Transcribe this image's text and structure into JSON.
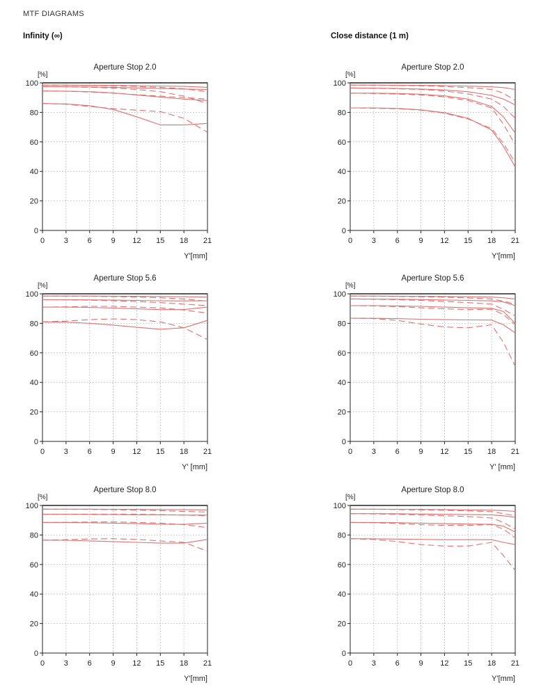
{
  "page_title": "MTF DIAGRAMS",
  "columns": [
    "Infinity (∞)",
    "Close distance (1 m)"
  ],
  "style": {
    "curve_color": "#e07070",
    "grid_color": "#aaaaaa",
    "axis_color": "#222222"
  },
  "chart_data": [
    {
      "type": "line",
      "title": "Aperture Stop 2.0",
      "ylabel": "[%]",
      "xlabel": "Y'[mm]",
      "xlim": [
        0,
        21
      ],
      "ylim": [
        0,
        100
      ],
      "xticks": [
        0,
        3,
        6,
        9,
        12,
        15,
        18,
        21
      ],
      "yticks": [
        0,
        20,
        40,
        60,
        80,
        100
      ],
      "x": [
        0,
        3,
        6,
        9,
        12,
        15,
        18,
        21
      ],
      "series": [
        {
          "dash": "solid",
          "values": [
            98.5,
            98.5,
            98.4,
            98.3,
            98.1,
            97.9,
            97.6,
            97
          ]
        },
        {
          "dash": "dashed",
          "values": [
            98.5,
            98.4,
            98.2,
            98,
            97.6,
            97,
            96,
            94
          ]
        },
        {
          "dash": "solid",
          "values": [
            97.5,
            97.4,
            97.2,
            97,
            96.6,
            96.2,
            95.8,
            95.5
          ]
        },
        {
          "dash": "dashed",
          "values": [
            97.5,
            97.3,
            97,
            96.5,
            95.5,
            94,
            91,
            86
          ]
        },
        {
          "dash": "solid",
          "values": [
            94.5,
            94.4,
            94,
            93.2,
            91.8,
            90.4,
            89,
            88
          ]
        },
        {
          "dash": "dashed",
          "values": [
            94.5,
            94.3,
            93.8,
            93,
            92,
            91,
            90,
            89
          ]
        },
        {
          "dash": "solid",
          "values": [
            86,
            85.7,
            84.5,
            82,
            77,
            71.5,
            71.5,
            72.5
          ]
        },
        {
          "dash": "dashed",
          "values": [
            86,
            85.5,
            84,
            82.5,
            81.5,
            80.5,
            76,
            66.5
          ]
        }
      ]
    },
    {
      "type": "line",
      "title": "Aperture Stop 2.0",
      "ylabel": "[%]",
      "xlabel": "Y'[mm]",
      "xlim": [
        0,
        21
      ],
      "ylim": [
        0,
        100
      ],
      "xticks": [
        0,
        3,
        6,
        9,
        12,
        15,
        18,
        21
      ],
      "yticks": [
        0,
        20,
        40,
        60,
        80,
        100
      ],
      "x": [
        0,
        3,
        6,
        9,
        12,
        15,
        18,
        19.5,
        21
      ],
      "series": [
        {
          "dash": "solid",
          "values": [
            98.5,
            98.5,
            98.4,
            98.3,
            98.1,
            97.8,
            97.3,
            96.8,
            95.5
          ]
        },
        {
          "dash": "dashed",
          "values": [
            98.5,
            98.4,
            98.2,
            98,
            97.5,
            96.8,
            95.5,
            93,
            88
          ]
        },
        {
          "dash": "solid",
          "values": [
            96.5,
            96.4,
            96.2,
            95.8,
            95.2,
            94,
            91.5,
            89,
            85
          ]
        },
        {
          "dash": "dashed",
          "values": [
            96.5,
            96.3,
            96,
            95.5,
            94.5,
            92.5,
            89,
            84,
            76
          ]
        },
        {
          "dash": "solid",
          "values": [
            93,
            93,
            92.8,
            92.3,
            91.2,
            89,
            84,
            77,
            66
          ]
        },
        {
          "dash": "dashed",
          "values": [
            93,
            92.8,
            92.4,
            91.8,
            90.5,
            88,
            83,
            72,
            58
          ]
        },
        {
          "dash": "solid",
          "values": [
            83,
            83,
            82.7,
            81.7,
            79.8,
            76,
            68,
            57,
            43
          ]
        },
        {
          "dash": "dashed",
          "values": [
            83,
            82.8,
            82.5,
            81.5,
            79.5,
            75.5,
            69,
            59,
            46
          ]
        }
      ]
    },
    {
      "type": "line",
      "title": "Aperture Stop 5.6",
      "ylabel": "[%]",
      "xlabel": "Y' [mm]",
      "xlim": [
        0,
        21
      ],
      "ylim": [
        0,
        100
      ],
      "xticks": [
        0,
        3,
        6,
        9,
        12,
        15,
        18,
        21
      ],
      "yticks": [
        0,
        20,
        40,
        60,
        80,
        100
      ],
      "x": [
        0,
        3,
        6,
        9,
        12,
        15,
        18,
        21
      ],
      "series": [
        {
          "dash": "solid",
          "values": [
            98.5,
            98.5,
            98.5,
            98.4,
            98.3,
            98.2,
            98,
            97.8
          ]
        },
        {
          "dash": "dashed",
          "values": [
            98.5,
            98.4,
            98.3,
            98.1,
            97.8,
            97.3,
            96.5,
            95
          ]
        },
        {
          "dash": "solid",
          "values": [
            96,
            96,
            95.9,
            95.7,
            95.5,
            95.3,
            95.2,
            95.3
          ]
        },
        {
          "dash": "dashed",
          "values": [
            96,
            95.9,
            95.7,
            95.3,
            94.8,
            94,
            93,
            92
          ]
        },
        {
          "dash": "solid",
          "values": [
            91,
            91,
            90.8,
            90.4,
            89.8,
            89.3,
            89.3,
            91
          ]
        },
        {
          "dash": "dashed",
          "values": [
            91,
            91.2,
            91.5,
            91.5,
            91,
            90.5,
            89,
            87
          ]
        },
        {
          "dash": "solid",
          "values": [
            81,
            80.8,
            80,
            78.8,
            77.3,
            76,
            77,
            82
          ]
        },
        {
          "dash": "dashed",
          "values": [
            81,
            81.5,
            82.5,
            83,
            82.5,
            81,
            77,
            69
          ]
        }
      ]
    },
    {
      "type": "line",
      "title": "Aperture Stop 5.6",
      "ylabel": "[%]",
      "xlabel": "Y' [mm]",
      "xlim": [
        0,
        21
      ],
      "ylim": [
        0,
        100
      ],
      "xticks": [
        0,
        3,
        6,
        9,
        12,
        15,
        18,
        21
      ],
      "yticks": [
        0,
        20,
        40,
        60,
        80,
        100
      ],
      "x": [
        0,
        3,
        6,
        9,
        12,
        15,
        18,
        19.5,
        21
      ],
      "series": [
        {
          "dash": "solid",
          "values": [
            98.5,
            98.5,
            98.4,
            98.3,
            98.2,
            98,
            97.8,
            97.3,
            96.5
          ]
        },
        {
          "dash": "dashed",
          "values": [
            98.5,
            98.4,
            98.2,
            98,
            97.7,
            97.2,
            96.5,
            95,
            93
          ]
        },
        {
          "dash": "solid",
          "values": [
            96.5,
            96.4,
            96.3,
            96.1,
            95.8,
            95.5,
            95.2,
            94.5,
            92
          ]
        },
        {
          "dash": "dashed",
          "values": [
            96.5,
            96.3,
            96,
            95.5,
            94.8,
            94,
            93,
            89.5,
            85
          ]
        },
        {
          "dash": "solid",
          "values": [
            92,
            92,
            91.8,
            91.5,
            91,
            90.5,
            90.2,
            88,
            80
          ]
        },
        {
          "dash": "dashed",
          "values": [
            92,
            91.8,
            91.3,
            90.5,
            89.8,
            89.3,
            89.5,
            86,
            79
          ]
        },
        {
          "dash": "solid",
          "values": [
            83.5,
            83.4,
            83.2,
            82.8,
            82.5,
            82.3,
            82.2,
            79,
            73.5
          ]
        },
        {
          "dash": "dashed",
          "values": [
            83.5,
            83.2,
            82,
            79.5,
            77.5,
            77,
            79,
            67,
            51
          ]
        }
      ]
    },
    {
      "type": "line",
      "title": "Aperture Stop 8.0",
      "ylabel": "[%]",
      "xlabel": "Y'[mm]",
      "xlim": [
        0,
        21
      ],
      "ylim": [
        0,
        100
      ],
      "xticks": [
        0,
        3,
        6,
        9,
        12,
        15,
        18,
        21
      ],
      "yticks": [
        0,
        20,
        40,
        60,
        80,
        100
      ],
      "x": [
        0,
        3,
        6,
        9,
        12,
        15,
        18,
        21
      ],
      "series": [
        {
          "dash": "solid",
          "values": [
            97.5,
            97.5,
            97.5,
            97.4,
            97.3,
            97.2,
            97.1,
            97
          ]
        },
        {
          "dash": "dashed",
          "values": [
            97.5,
            97.4,
            97.3,
            97.1,
            96.8,
            96.5,
            96,
            95.5
          ]
        },
        {
          "dash": "solid",
          "values": [
            94,
            94,
            93.9,
            93.8,
            93.7,
            93.6,
            93.5,
            93.5
          ]
        },
        {
          "dash": "dashed",
          "values": [
            94,
            94,
            94.1,
            94.1,
            94,
            93.8,
            93.5,
            93
          ]
        },
        {
          "dash": "solid",
          "values": [
            88.5,
            88.5,
            88.3,
            88,
            87.7,
            87.3,
            87.2,
            88
          ]
        },
        {
          "dash": "dashed",
          "values": [
            88.5,
            88.6,
            88.8,
            88.8,
            88.5,
            88,
            87,
            85
          ]
        },
        {
          "dash": "solid",
          "values": [
            76.5,
            76.4,
            76,
            75.5,
            75,
            74.5,
            74.5,
            77
          ]
        },
        {
          "dash": "dashed",
          "values": [
            76.5,
            76.8,
            77.3,
            77.5,
            77,
            76,
            75,
            69
          ]
        }
      ]
    },
    {
      "type": "line",
      "title": "Aperture Stop 8.0",
      "ylabel": "[%]",
      "xlabel": "Y'[mm]",
      "xlim": [
        0,
        21
      ],
      "ylim": [
        0,
        100
      ],
      "xticks": [
        0,
        3,
        6,
        9,
        12,
        15,
        18,
        21
      ],
      "yticks": [
        0,
        20,
        40,
        60,
        80,
        100
      ],
      "x": [
        0,
        3,
        6,
        9,
        12,
        15,
        18,
        19.5,
        21
      ],
      "series": [
        {
          "dash": "solid",
          "values": [
            97.5,
            97.5,
            97.4,
            97.3,
            97.2,
            97,
            96.8,
            96.5,
            96
          ]
        },
        {
          "dash": "dashed",
          "values": [
            97.5,
            97.4,
            97.2,
            97,
            96.7,
            96.3,
            95.8,
            94.5,
            93
          ]
        },
        {
          "dash": "solid",
          "values": [
            94.5,
            94.5,
            94.4,
            94.2,
            94,
            93.8,
            93.6,
            93,
            92
          ]
        },
        {
          "dash": "dashed",
          "values": [
            94.5,
            94.3,
            94,
            93.5,
            93,
            92.5,
            91.5,
            88.5,
            84
          ]
        },
        {
          "dash": "solid",
          "values": [
            88.5,
            88.5,
            88.3,
            88,
            87.7,
            87.4,
            87.2,
            86,
            82
          ]
        },
        {
          "dash": "dashed",
          "values": [
            88.5,
            88.3,
            87.8,
            87,
            86.5,
            86.5,
            87,
            84,
            78
          ]
        },
        {
          "dash": "solid",
          "values": [
            77.5,
            77.4,
            77.2,
            77,
            76.8,
            76.8,
            76.8,
            75,
            73.5
          ]
        },
        {
          "dash": "dashed",
          "values": [
            77.5,
            77,
            75.5,
            73.5,
            72.5,
            72.5,
            75,
            66,
            56
          ]
        }
      ]
    }
  ]
}
